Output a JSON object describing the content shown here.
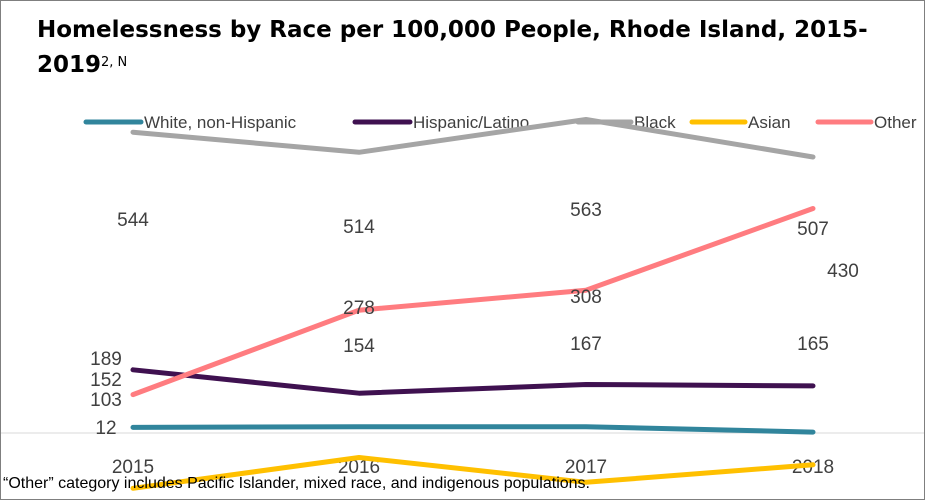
{
  "chart_data": {
    "type": "line",
    "title": "Homelessness by Race per 100,000 People, Rhode Island, 2015-2019",
    "title_superscript": "2, N",
    "categories": [
      "2015",
      "2016",
      "2017",
      "2018"
    ],
    "series": [
      {
        "name": "White, non-Hispanic",
        "color": "#31859c",
        "values": [
          103,
          104,
          104,
          96
        ]
      },
      {
        "name": "Hispanic/Latino",
        "color": "#3f1150",
        "values": [
          189,
          154,
          167,
          165
        ]
      },
      {
        "name": "Black",
        "color": "#a5a5a5",
        "values": [
          544,
          514,
          563,
          507
        ]
      },
      {
        "name": "Asian",
        "color": "#ffc000",
        "values": [
          12,
          58,
          21,
          47
        ]
      },
      {
        "name": "Other",
        "color": "#ff7c80",
        "values": [
          152,
          278,
          308,
          430
        ]
      }
    ],
    "data_labels": [
      {
        "series": 2,
        "index": 0,
        "text": "544"
      },
      {
        "series": 2,
        "index": 1,
        "text": "514"
      },
      {
        "series": 2,
        "index": 2,
        "text": "563"
      },
      {
        "series": 2,
        "index": 3,
        "text": "507"
      },
      {
        "series": 4,
        "index": 1,
        "text": "278"
      },
      {
        "series": 4,
        "index": 2,
        "text": "308"
      },
      {
        "series": 4,
        "index": 3,
        "text": "430"
      },
      {
        "series": 1,
        "index": 0,
        "text": "189"
      },
      {
        "series": 1,
        "index": 1,
        "text": "154"
      },
      {
        "series": 1,
        "index": 2,
        "text": "167"
      },
      {
        "series": 1,
        "index": 3,
        "text": "165"
      },
      {
        "series": 4,
        "index": 0,
        "text": "152"
      },
      {
        "series": 0,
        "index": 0,
        "text": "103"
      },
      {
        "series": 3,
        "index": 0,
        "text": "12"
      }
    ],
    "ylim": [
      -10,
      740
    ],
    "grid": false,
    "legend_position": "top"
  },
  "footnote": "“Other” category includes Pacific Islander,  mixed race, and indigenous populations."
}
